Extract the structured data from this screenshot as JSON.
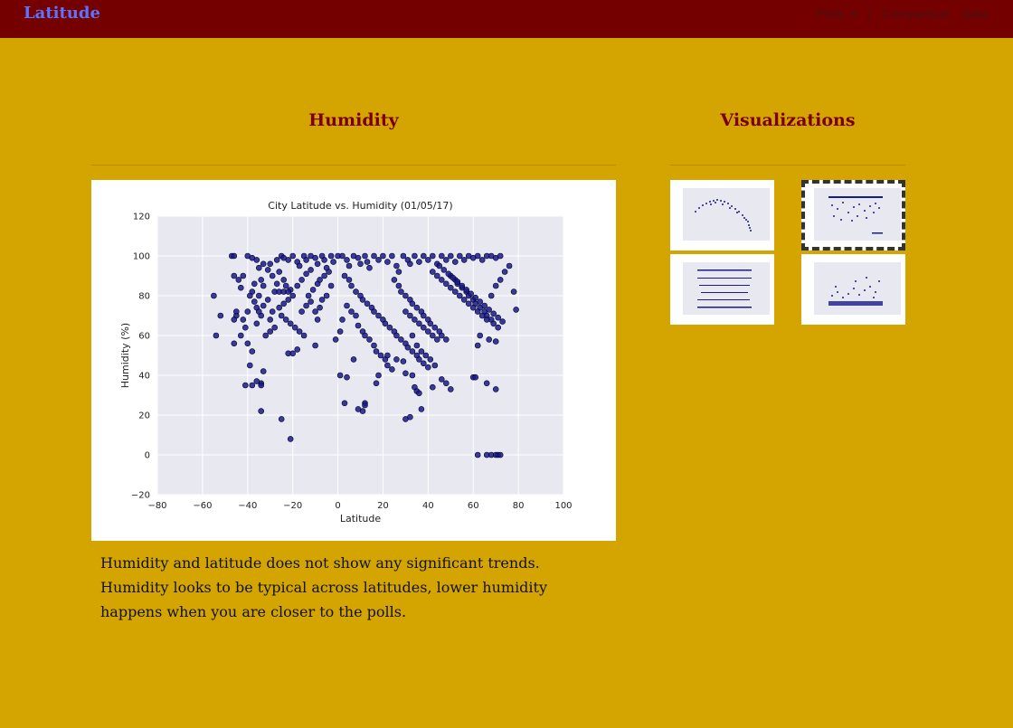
{
  "navbar": {
    "brand": "Latitude",
    "links": [
      {
        "label": "Plots"
      },
      {
        "label": "Comparison"
      },
      {
        "label": "Data"
      }
    ]
  },
  "main": {
    "title": "Humidity",
    "description": "Humidity and latitude does not show any significant trends. Humidity looks to be typical across latitudes, lower humidity happens when you are closer to the polls."
  },
  "sidebar": {
    "title": "Visualizations",
    "thumbnails": [
      {
        "name": "temperature-thumbnail",
        "selected": false
      },
      {
        "name": "humidity-thumbnail",
        "selected": true
      },
      {
        "name": "cloudiness-thumbnail",
        "selected": false
      },
      {
        "name": "wind-speed-thumbnail",
        "selected": false
      }
    ]
  },
  "colors": {
    "background": "#d4a500",
    "navbar": "#750000",
    "brand": "#5b73ff",
    "title": "#7a0000",
    "point": "#1a1a8a",
    "plot_bg": "#e8e8f0"
  },
  "chart_data": {
    "type": "scatter",
    "title": "City Latitude vs. Humidity (01/05/17)",
    "xlabel": "Latitude",
    "ylabel": "Humidity (%)",
    "xlim": [
      -80,
      100
    ],
    "ylim": [
      -20,
      120
    ],
    "xticks": [
      -80,
      -60,
      -40,
      -20,
      0,
      20,
      40,
      60,
      80,
      100
    ],
    "yticks": [
      -20,
      0,
      20,
      40,
      60,
      80,
      100,
      120
    ],
    "grid": true,
    "series": [
      {
        "points": [
          [
            -47,
            100
          ],
          [
            -46,
            100
          ],
          [
            -46,
            90
          ],
          [
            -45,
            72
          ],
          [
            -45,
            70
          ],
          [
            -46,
            68
          ],
          [
            -46,
            56
          ],
          [
            -42,
            68
          ],
          [
            -55,
            80
          ],
          [
            -54,
            60
          ],
          [
            -52,
            70
          ],
          [
            -42,
            90
          ],
          [
            -40,
            100
          ],
          [
            -38,
            99
          ],
          [
            -36,
            98
          ],
          [
            -35,
            94
          ],
          [
            -34,
            88
          ],
          [
            -33,
            85
          ],
          [
            -35,
            80
          ],
          [
            -33,
            75
          ],
          [
            -34,
            70
          ],
          [
            -36,
            66
          ],
          [
            -32,
            60
          ],
          [
            -30,
            62
          ],
          [
            -28,
            64
          ],
          [
            -30,
            68
          ],
          [
            -29,
            72
          ],
          [
            -31,
            78
          ],
          [
            -28,
            82
          ],
          [
            -27,
            86
          ],
          [
            -29,
            90
          ],
          [
            -31,
            93
          ],
          [
            -38,
            82
          ],
          [
            -37,
            77
          ],
          [
            -36,
            74
          ],
          [
            -35,
            72
          ],
          [
            -34,
            36
          ],
          [
            -34,
            35
          ],
          [
            -36,
            37
          ],
          [
            -38,
            35
          ],
          [
            -41,
            35
          ],
          [
            -39,
            45
          ],
          [
            -33,
            42
          ],
          [
            -34,
            22
          ],
          [
            -25,
            18
          ],
          [
            -21,
            8
          ],
          [
            -22,
            51
          ],
          [
            -20,
            51
          ],
          [
            -18,
            53
          ],
          [
            -25,
            100
          ],
          [
            -24,
            99
          ],
          [
            -22,
            98
          ],
          [
            -20,
            100
          ],
          [
            -18,
            97
          ],
          [
            -17,
            95
          ],
          [
            -15,
            100
          ],
          [
            -14,
            98
          ],
          [
            -12,
            100
          ],
          [
            -10,
            99
          ],
          [
            -9,
            96
          ],
          [
            -7,
            100
          ],
          [
            -6,
            98
          ],
          [
            -5,
            94
          ],
          [
            -3,
            100
          ],
          [
            -2,
            97
          ],
          [
            0,
            100
          ],
          [
            -26,
            92
          ],
          [
            -24,
            88
          ],
          [
            -23,
            85
          ],
          [
            -21,
            83
          ],
          [
            -20,
            80
          ],
          [
            -22,
            78
          ],
          [
            -24,
            76
          ],
          [
            -26,
            74
          ],
          [
            -25,
            70
          ],
          [
            -23,
            68
          ],
          [
            -21,
            66
          ],
          [
            -19,
            64
          ],
          [
            -17,
            62
          ],
          [
            -15,
            60
          ],
          [
            -16,
            72
          ],
          [
            -14,
            75
          ],
          [
            -12,
            77
          ],
          [
            -13,
            80
          ],
          [
            -11,
            83
          ],
          [
            -9,
            86
          ],
          [
            -8,
            88
          ],
          [
            -6,
            90
          ],
          [
            -4,
            92
          ],
          [
            -3,
            85
          ],
          [
            -5,
            80
          ],
          [
            -7,
            78
          ],
          [
            -8,
            74
          ],
          [
            -10,
            72
          ],
          [
            -9,
            68
          ],
          [
            -10,
            55
          ],
          [
            -26,
            82
          ],
          [
            -24,
            82
          ],
          [
            -22,
            82
          ],
          [
            -18,
            85
          ],
          [
            -16,
            88
          ],
          [
            -14,
            91
          ],
          [
            -12,
            93
          ],
          [
            2,
            100
          ],
          [
            4,
            98
          ],
          [
            5,
            95
          ],
          [
            7,
            100
          ],
          [
            9,
            99
          ],
          [
            10,
            96
          ],
          [
            12,
            100
          ],
          [
            13,
            97
          ],
          [
            14,
            94
          ],
          [
            16,
            100
          ],
          [
            18,
            98
          ],
          [
            20,
            100
          ],
          [
            22,
            97
          ],
          [
            24,
            100
          ],
          [
            26,
            95
          ],
          [
            27,
            92
          ],
          [
            29,
            100
          ],
          [
            31,
            98
          ],
          [
            32,
            96
          ],
          [
            34,
            100
          ],
          [
            36,
            97
          ],
          [
            38,
            100
          ],
          [
            40,
            98
          ],
          [
            42,
            100
          ],
          [
            44,
            96
          ],
          [
            46,
            100
          ],
          [
            48,
            98
          ],
          [
            50,
            100
          ],
          [
            52,
            97
          ],
          [
            54,
            100
          ],
          [
            56,
            98
          ],
          [
            58,
            100
          ],
          [
            60,
            99
          ],
          [
            62,
            100
          ],
          [
            64,
            98
          ],
          [
            66,
            100
          ],
          [
            68,
            100
          ],
          [
            70,
            99
          ],
          [
            72,
            100
          ],
          [
            3,
            90
          ],
          [
            5,
            88
          ],
          [
            6,
            85
          ],
          [
            8,
            82
          ],
          [
            10,
            80
          ],
          [
            11,
            78
          ],
          [
            13,
            76
          ],
          [
            15,
            74
          ],
          [
            16,
            72
          ],
          [
            18,
            70
          ],
          [
            20,
            68
          ],
          [
            21,
            66
          ],
          [
            23,
            64
          ],
          [
            25,
            62
          ],
          [
            26,
            60
          ],
          [
            28,
            58
          ],
          [
            30,
            56
          ],
          [
            31,
            54
          ],
          [
            33,
            52
          ],
          [
            35,
            50
          ],
          [
            36,
            48
          ],
          [
            38,
            46
          ],
          [
            40,
            44
          ],
          [
            4,
            75
          ],
          [
            6,
            72
          ],
          [
            8,
            70
          ],
          [
            9,
            65
          ],
          [
            11,
            62
          ],
          [
            12,
            60
          ],
          [
            14,
            58
          ],
          [
            16,
            55
          ],
          [
            17,
            52
          ],
          [
            19,
            50
          ],
          [
            21,
            48
          ],
          [
            22,
            45
          ],
          [
            24,
            43
          ],
          [
            2,
            68
          ],
          [
            1,
            62
          ],
          [
            -1,
            58
          ],
          [
            25,
            88
          ],
          [
            27,
            85
          ],
          [
            28,
            82
          ],
          [
            30,
            80
          ],
          [
            32,
            78
          ],
          [
            33,
            76
          ],
          [
            35,
            74
          ],
          [
            37,
            72
          ],
          [
            38,
            70
          ],
          [
            40,
            68
          ],
          [
            41,
            66
          ],
          [
            43,
            64
          ],
          [
            45,
            62
          ],
          [
            46,
            60
          ],
          [
            48,
            58
          ],
          [
            50,
            90
          ],
          [
            52,
            88
          ],
          [
            53,
            86
          ],
          [
            55,
            84
          ],
          [
            57,
            82
          ],
          [
            58,
            80
          ],
          [
            60,
            78
          ],
          [
            61,
            76
          ],
          [
            63,
            74
          ],
          [
            65,
            72
          ],
          [
            66,
            70
          ],
          [
            68,
            68
          ],
          [
            69,
            66
          ],
          [
            71,
            64
          ],
          [
            42,
            92
          ],
          [
            44,
            90
          ],
          [
            46,
            88
          ],
          [
            48,
            86
          ],
          [
            50,
            84
          ],
          [
            52,
            82
          ],
          [
            54,
            80
          ],
          [
            56,
            78
          ],
          [
            58,
            76
          ],
          [
            60,
            74
          ],
          [
            62,
            72
          ],
          [
            64,
            70
          ],
          [
            66,
            68
          ],
          [
            68,
            80
          ],
          [
            70,
            85
          ],
          [
            72,
            88
          ],
          [
            74,
            92
          ],
          [
            76,
            95
          ],
          [
            78,
            82
          ],
          [
            79,
            73
          ],
          [
            45,
            95
          ],
          [
            47,
            93
          ],
          [
            49,
            91
          ],
          [
            51,
            89
          ],
          [
            53,
            87
          ],
          [
            55,
            85
          ],
          [
            57,
            83
          ],
          [
            59,
            81
          ],
          [
            61,
            79
          ],
          [
            63,
            77
          ],
          [
            65,
            75
          ],
          [
            67,
            73
          ],
          [
            69,
            71
          ],
          [
            71,
            69
          ],
          [
            73,
            67
          ],
          [
            30,
            72
          ],
          [
            32,
            70
          ],
          [
            34,
            68
          ],
          [
            36,
            66
          ],
          [
            38,
            64
          ],
          [
            40,
            62
          ],
          [
            42,
            60
          ],
          [
            44,
            58
          ],
          [
            33,
            60
          ],
          [
            35,
            55
          ],
          [
            37,
            52
          ],
          [
            39,
            50
          ],
          [
            41,
            48
          ],
          [
            43,
            45
          ],
          [
            1,
            40
          ],
          [
            3,
            26
          ],
          [
            4,
            39
          ],
          [
            7,
            48
          ],
          [
            9,
            23
          ],
          [
            11,
            22
          ],
          [
            12,
            26
          ],
          [
            12,
            25
          ],
          [
            17,
            36
          ],
          [
            18,
            40
          ],
          [
            22,
            50
          ],
          [
            26,
            48
          ],
          [
            29,
            47
          ],
          [
            30,
            41
          ],
          [
            33,
            40
          ],
          [
            34,
            34
          ],
          [
            35,
            32
          ],
          [
            36,
            31
          ],
          [
            37,
            23
          ],
          [
            30,
            18
          ],
          [
            32,
            19
          ],
          [
            42,
            34
          ],
          [
            46,
            38
          ],
          [
            48,
            36
          ],
          [
            50,
            33
          ],
          [
            60,
            39
          ],
          [
            61,
            39
          ],
          [
            66,
            36
          ],
          [
            70,
            33
          ],
          [
            67,
            58
          ],
          [
            70,
            57
          ],
          [
            62,
            55
          ],
          [
            63,
            60
          ],
          [
            62,
            0
          ],
          [
            66,
            0
          ],
          [
            68,
            0
          ],
          [
            70,
            0
          ],
          [
            71,
            0
          ],
          [
            72,
            0
          ],
          [
            -40,
            72
          ],
          [
            -41,
            64
          ],
          [
            -43,
            60
          ],
          [
            -40,
            56
          ],
          [
            -38,
            52
          ],
          [
            -44,
            88
          ],
          [
            -43,
            84
          ],
          [
            -39,
            80
          ],
          [
            -37,
            86
          ],
          [
            -33,
            96
          ],
          [
            -30,
            96
          ],
          [
            -27,
            98
          ]
        ]
      }
    ]
  }
}
